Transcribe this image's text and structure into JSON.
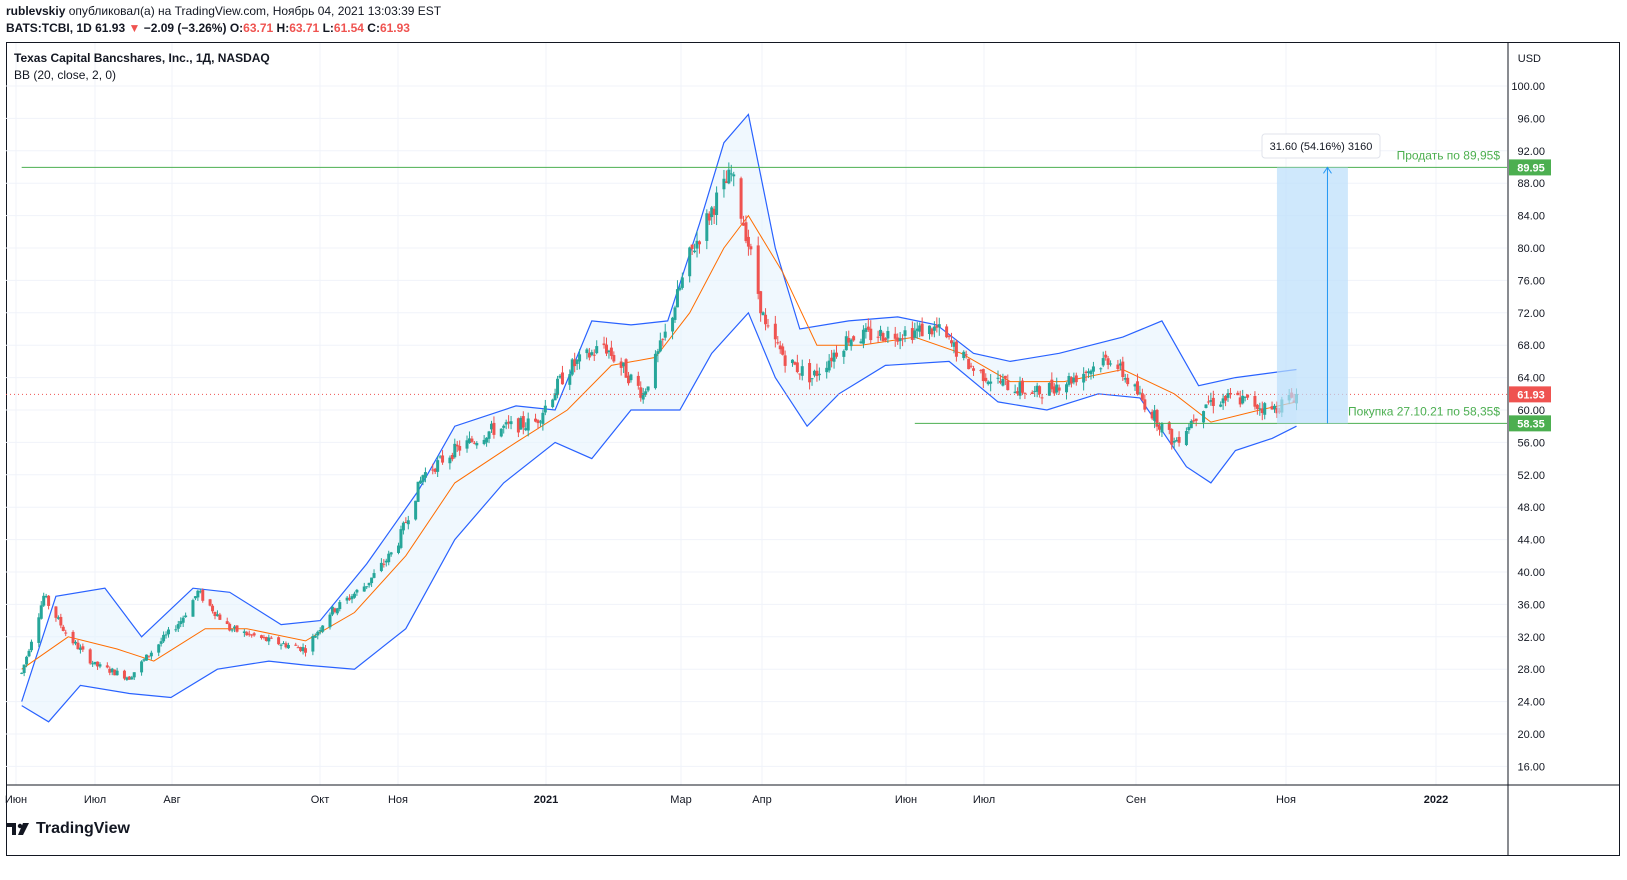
{
  "header": {
    "user": "rublevskiy",
    "published": "опубликовал(а) на TradingView.com, Ноябрь 04, 2021 13:03:39 EST",
    "symbol_line": "BATS:TCBI, 1D",
    "last": "61.93",
    "change_arrow": "▼",
    "change": "−2.09 (−3.26%)",
    "o_label": "O:",
    "o_value": "63.71",
    "h_label": "H:",
    "h_value": "63.71",
    "l_label": "L:",
    "l_value": "61.54",
    "c_label": "C:",
    "c_value": "61.93"
  },
  "legend": {
    "title": "Texas Capital Bancshares, Inc., 1Д, NASDAQ",
    "indicator": "BB (20, close, 2, 0)"
  },
  "brand": {
    "logo_text": "TradingView",
    "logo_icon": "tradingview-logo-icon"
  },
  "colors": {
    "up": "#26a69a",
    "down": "#ef5350",
    "band": "#2962ff",
    "basis": "#ff6d00",
    "fill": "#e3f2fd",
    "level": "#4caf50",
    "measure": "#bbdefb",
    "measure_line": "#2196f3"
  },
  "chart_data": {
    "type": "candlestick",
    "title": "Texas Capital Bancshares, Inc., 1Д, NASDAQ",
    "currency": "USD",
    "ylim": [
      14,
      104
    ],
    "y_ticks": [
      "100.00",
      "96.00",
      "92.00",
      "88.00",
      "84.00",
      "80.00",
      "76.00",
      "72.00",
      "68.00",
      "64.00",
      "60.00",
      "56.00",
      "52.00",
      "48.00",
      "44.00",
      "40.00",
      "36.00",
      "32.00",
      "28.00",
      "24.00",
      "20.00",
      "16.00"
    ],
    "x_labels": [
      "Июн",
      "Июл",
      "Авг",
      "Окт",
      "Ноя",
      "2021",
      "Мар",
      "Апр",
      "Июн",
      "Июл",
      "Сен",
      "Ноя",
      "2022"
    ],
    "close_series": [
      [
        "2020-06-01",
        27.5
      ],
      [
        "2020-06-10",
        37.0
      ],
      [
        "2020-06-20",
        32.0
      ],
      [
        "2020-07-01",
        28.5
      ],
      [
        "2020-07-15",
        27.0
      ],
      [
        "2020-07-25",
        30.5
      ],
      [
        "2020-08-05",
        34.0
      ],
      [
        "2020-08-12",
        37.5
      ],
      [
        "2020-08-25",
        33.0
      ],
      [
        "2020-09-10",
        31.5
      ],
      [
        "2020-09-25",
        30.5
      ],
      [
        "2020-10-05",
        35.0
      ],
      [
        "2020-10-20",
        38.5
      ],
      [
        "2020-11-01",
        43.0
      ],
      [
        "2020-11-12",
        52.0
      ],
      [
        "2020-11-25",
        55.0
      ],
      [
        "2020-12-10",
        57.5
      ],
      [
        "2020-12-28",
        58.5
      ],
      [
        "2021-01-10",
        65.0
      ],
      [
        "2021-01-25",
        68.0
      ],
      [
        "2021-02-10",
        62.0
      ],
      [
        "2021-02-20",
        70.0
      ],
      [
        "2021-03-01",
        79.0
      ],
      [
        "2021-03-12",
        86.0
      ],
      [
        "2021-03-18",
        89.0
      ],
      [
        "2021-03-24",
        82.0
      ],
      [
        "2021-04-01",
        70.0
      ],
      [
        "2021-04-10",
        66.0
      ],
      [
        "2021-04-20",
        64.0
      ],
      [
        "2021-05-05",
        69.0
      ],
      [
        "2021-05-25",
        69.5
      ],
      [
        "2021-06-10",
        70.0
      ],
      [
        "2021-06-25",
        65.0
      ],
      [
        "2021-07-05",
        63.5
      ],
      [
        "2021-07-20",
        62.0
      ],
      [
        "2021-08-05",
        64.0
      ],
      [
        "2021-08-20",
        66.5
      ],
      [
        "2021-09-05",
        60.0
      ],
      [
        "2021-09-15",
        56.0
      ],
      [
        "2021-09-28",
        61.0
      ],
      [
        "2021-10-10",
        61.5
      ],
      [
        "2021-10-25",
        60.0
      ],
      [
        "2021-11-04",
        61.93
      ]
    ],
    "bb_upper": [
      [
        "2020-06-01",
        24.0
      ],
      [
        "2020-06-15",
        37.0
      ],
      [
        "2020-07-05",
        38.0
      ],
      [
        "2020-07-20",
        32.0
      ],
      [
        "2020-08-10",
        38.0
      ],
      [
        "2020-08-25",
        37.5
      ],
      [
        "2020-09-15",
        33.5
      ],
      [
        "2020-10-01",
        34.0
      ],
      [
        "2020-10-20",
        41.0
      ],
      [
        "2020-11-10",
        50.0
      ],
      [
        "2020-11-25",
        58.0
      ],
      [
        "2020-12-20",
        60.5
      ],
      [
        "2021-01-05",
        60.0
      ],
      [
        "2021-01-20",
        71.0
      ],
      [
        "2021-02-05",
        70.5
      ],
      [
        "2021-02-20",
        71.0
      ],
      [
        "2021-03-05",
        83.0
      ],
      [
        "2021-03-15",
        93.0
      ],
      [
        "2021-03-25",
        96.5
      ],
      [
        "2021-04-05",
        80.0
      ],
      [
        "2021-04-15",
        70.0
      ],
      [
        "2021-05-05",
        71.0
      ],
      [
        "2021-05-25",
        71.5
      ],
      [
        "2021-06-10",
        70.5
      ],
      [
        "2021-06-25",
        67.0
      ],
      [
        "2021-07-10",
        66.0
      ],
      [
        "2021-07-30",
        67.0
      ],
      [
        "2021-08-25",
        69.0
      ],
      [
        "2021-09-10",
        71.0
      ],
      [
        "2021-09-25",
        63.0
      ],
      [
        "2021-10-10",
        64.0
      ],
      [
        "2021-11-04",
        65.0
      ]
    ],
    "bb_basis": [
      [
        "2020-06-01",
        28.0
      ],
      [
        "2020-06-20",
        32.0
      ],
      [
        "2020-07-10",
        30.5
      ],
      [
        "2020-07-25",
        29.0
      ],
      [
        "2020-08-15",
        33.0
      ],
      [
        "2020-09-01",
        33.0
      ],
      [
        "2020-09-25",
        31.5
      ],
      [
        "2020-10-15",
        35.0
      ],
      [
        "2020-11-05",
        42.0
      ],
      [
        "2020-11-25",
        51.0
      ],
      [
        "2020-12-20",
        56.0
      ],
      [
        "2021-01-10",
        60.0
      ],
      [
        "2021-01-28",
        65.5
      ],
      [
        "2021-02-15",
        66.5
      ],
      [
        "2021-03-01",
        72.0
      ],
      [
        "2021-03-15",
        80.0
      ],
      [
        "2021-03-25",
        84.0
      ],
      [
        "2021-04-08",
        77.0
      ],
      [
        "2021-04-22",
        68.0
      ],
      [
        "2021-05-10",
        68.0
      ],
      [
        "2021-06-01",
        69.0
      ],
      [
        "2021-06-20",
        67.0
      ],
      [
        "2021-07-10",
        63.5
      ],
      [
        "2021-08-01",
        63.5
      ],
      [
        "2021-08-25",
        65.0
      ],
      [
        "2021-09-15",
        62.0
      ],
      [
        "2021-09-30",
        58.5
      ],
      [
        "2021-10-20",
        60.0
      ],
      [
        "2021-11-04",
        61.0
      ]
    ],
    "bb_lower": [
      [
        "2020-06-01",
        23.5
      ],
      [
        "2020-06-12",
        21.5
      ],
      [
        "2020-06-25",
        26.0
      ],
      [
        "2020-07-15",
        25.0
      ],
      [
        "2020-08-01",
        24.5
      ],
      [
        "2020-08-20",
        28.0
      ],
      [
        "2020-09-10",
        29.0
      ],
      [
        "2020-09-25",
        28.5
      ],
      [
        "2020-10-15",
        28.0
      ],
      [
        "2020-11-05",
        33.0
      ],
      [
        "2020-11-25",
        44.0
      ],
      [
        "2020-12-15",
        51.0
      ],
      [
        "2021-01-05",
        56.0
      ],
      [
        "2021-01-20",
        54.0
      ],
      [
        "2021-02-05",
        60.0
      ],
      [
        "2021-02-25",
        60.0
      ],
      [
        "2021-03-10",
        67.0
      ],
      [
        "2021-03-25",
        72.0
      ],
      [
        "2021-04-05",
        64.0
      ],
      [
        "2021-04-18",
        58.0
      ],
      [
        "2021-05-01",
        62.0
      ],
      [
        "2021-05-20",
        65.5
      ],
      [
        "2021-06-15",
        66.0
      ],
      [
        "2021-07-05",
        61.0
      ],
      [
        "2021-07-25",
        60.0
      ],
      [
        "2021-08-15",
        62.0
      ],
      [
        "2021-09-01",
        61.5
      ],
      [
        "2021-09-20",
        53.0
      ],
      [
        "2021-09-30",
        51.0
      ],
      [
        "2021-10-10",
        55.0
      ],
      [
        "2021-10-25",
        56.5
      ],
      [
        "2021-11-04",
        58.0
      ]
    ],
    "levels": [
      {
        "name": "sell",
        "price": 89.95,
        "text": "Продать по 89,95$",
        "label": "89.95",
        "from": "2020-06-01"
      },
      {
        "name": "buy",
        "price": 58.35,
        "text": "Покупка 27.10.21 по 58,35$",
        "label": "58.35",
        "from": "2021-06-01"
      }
    ],
    "last_price_label": "61.93",
    "measure": {
      "from": "2021-10-27",
      "to": "2021-11-25",
      "low": 58.35,
      "high": 89.95,
      "text": "31.60 (54.16%) 3160"
    }
  }
}
